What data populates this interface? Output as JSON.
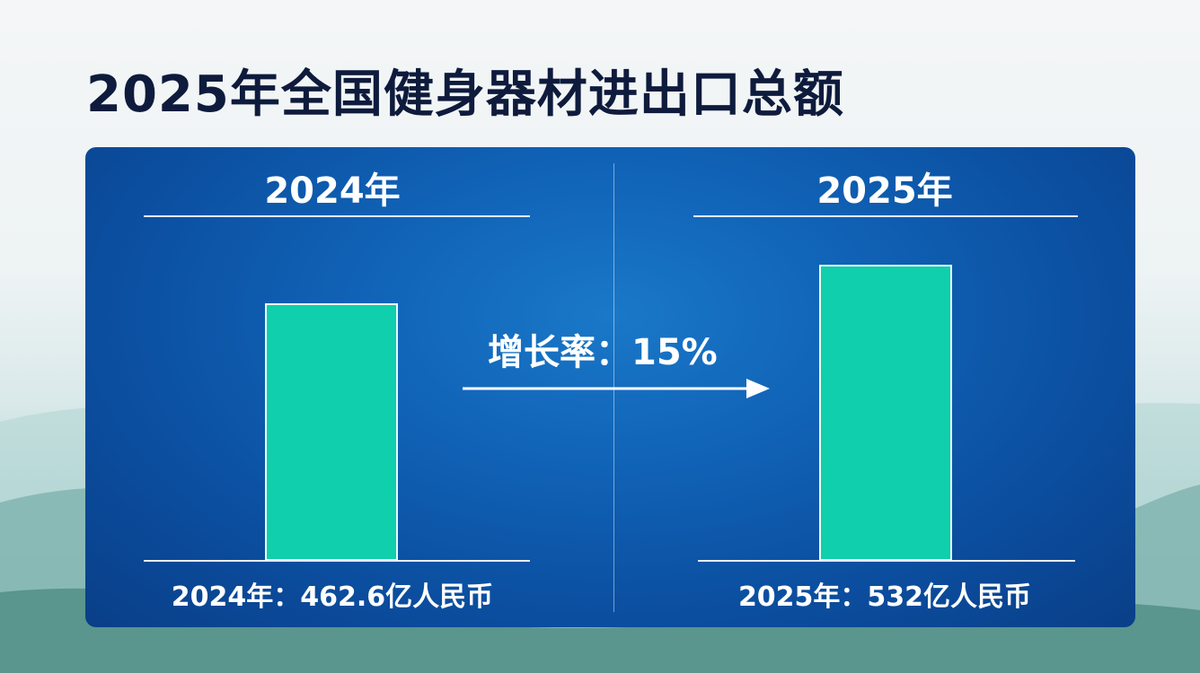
{
  "title": "2025年全国健身器材进出口总额",
  "chart_data": {
    "type": "bar",
    "title": "2025年全国健身器材进出口总额",
    "categories": [
      "2024年",
      "2025年"
    ],
    "values": [
      462.6,
      532
    ],
    "unit": "亿人民币",
    "value_labels": [
      "2024年：462.6亿人民币",
      "2025年：532亿人民币"
    ],
    "annotation": "增长率：15%",
    "growth_rate_percent": 15,
    "grid": false,
    "colors": {
      "bar": "#0fcfac",
      "panel": "#0b4d9e",
      "title": "#0e1b3c"
    }
  }
}
